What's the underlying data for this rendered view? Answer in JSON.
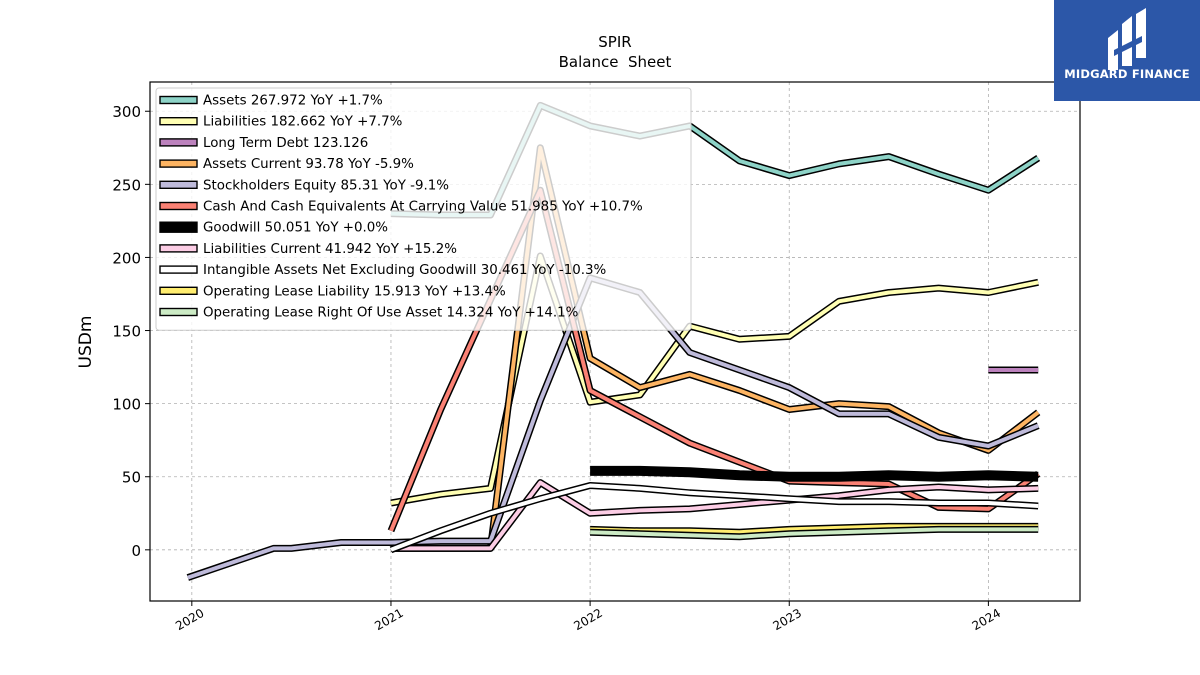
{
  "brand": {
    "name": "MIDGARD FINANCE",
    "icon": "midgard-logo-icon",
    "color": "#2c57a8"
  },
  "chart_data": {
    "type": "line",
    "title": "SPIR",
    "subtitle": "Balance  Sheet",
    "ylabel": "USDm",
    "xlabel": "",
    "xlim": [
      2019.79,
      2024.46
    ],
    "ylim": [
      -35,
      320
    ],
    "xticks": [
      2020,
      2021,
      2022,
      2023,
      2024
    ],
    "xtick_labels": [
      "2020",
      "2021",
      "2022",
      "2023",
      "2024"
    ],
    "yticks": [
      0,
      50,
      100,
      150,
      200,
      250,
      300
    ],
    "ytick_labels": [
      "0",
      "50",
      "100",
      "150",
      "200",
      "250",
      "300"
    ],
    "grid": true,
    "legend_position": "top-left",
    "series": [
      {
        "name": "Assets  267.972 YoY +1.7%",
        "color": "#8dd3c7",
        "x": [
          2021.0,
          2021.25,
          2021.5,
          2021.75,
          2022.0,
          2022.25,
          2022.5,
          2022.75,
          2023.0,
          2023.25,
          2023.5,
          2023.75,
          2024.0,
          2024.25
        ],
        "y": [
          230,
          229,
          229,
          304,
          290,
          283,
          290,
          266,
          256,
          264,
          269,
          257,
          246,
          268
        ]
      },
      {
        "name": "Liabilities  182.662 YoY +7.7%",
        "color": "#ffffb3",
        "x": [
          2021.0,
          2021.25,
          2021.5,
          2021.75,
          2022.0,
          2022.25,
          2022.5,
          2022.75,
          2023.0,
          2023.25,
          2023.5,
          2023.75,
          2024.0,
          2024.25
        ],
        "y": [
          32,
          38,
          42,
          201,
          101,
          106,
          153,
          144,
          146,
          170,
          176,
          179,
          176,
          183
        ]
      },
      {
        "name": "Long Term Debt  123.126",
        "color": "#bc82bd",
        "x": [
          2024.0,
          2024.25
        ],
        "y": [
          123,
          123
        ]
      },
      {
        "name": "Assets Current  93.78 YoY -5.9%",
        "color": "#fdb462",
        "x": [
          2021.0,
          2021.25,
          2021.5,
          2021.75,
          2022.0,
          2022.25,
          2022.5,
          2022.75,
          2023.0,
          2023.25,
          2023.5,
          2023.75,
          2024.0,
          2024.25
        ],
        "y": [
          1,
          1,
          1,
          275,
          131,
          111,
          120,
          109,
          96,
          100,
          98,
          80,
          68,
          94
        ]
      },
      {
        "name": "Stockholders Equity  85.31 YoY -9.1%",
        "color": "#bebada",
        "x": [
          2019.98,
          2020.41,
          2020.5,
          2020.75,
          2021.0,
          2021.25,
          2021.5,
          2021.75,
          2022.0,
          2022.25,
          2022.5,
          2022.75,
          2023.0,
          2023.25,
          2023.5,
          2023.75,
          2024.0,
          2024.25
        ],
        "y": [
          -19,
          1,
          1,
          5,
          5,
          6,
          6,
          102,
          186,
          176,
          135,
          123,
          111,
          93,
          93,
          77,
          71,
          85
        ]
      },
      {
        "name": "Cash And Cash Equivalents At Carrying Value  51.985 YoY +10.7%",
        "color": "#fa8174",
        "x": [
          2021.0,
          2021.25,
          2021.5,
          2021.75,
          2022.0,
          2022.25,
          2022.5,
          2022.75,
          2023.0,
          2023.25,
          2023.5,
          2023.75,
          2024.0,
          2024.25
        ],
        "y": [
          13,
          96,
          171,
          246,
          109,
          91,
          73,
          60,
          47,
          46,
          45,
          29,
          28,
          52
        ]
      },
      {
        "name": "Goodwill  50.051 YoY +0.0%",
        "color": "#000000",
        "x": [
          2022.0,
          2022.25,
          2022.5,
          2022.75,
          2023.0,
          2023.25,
          2023.5,
          2023.75,
          2024.0,
          2024.25
        ],
        "y": [
          54,
          54,
          53,
          51,
          50,
          50,
          51,
          50,
          51,
          50
        ]
      },
      {
        "name": "Liabilities Current  41.942 YoY +15.2%",
        "color": "#fccde5",
        "x": [
          2021.0,
          2021.25,
          2021.5,
          2021.75,
          2022.0,
          2022.25,
          2022.5,
          2022.75,
          2023.0,
          2023.25,
          2023.5,
          2023.75,
          2024.0,
          2024.25
        ],
        "y": [
          1,
          1,
          1,
          46,
          25,
          27,
          28,
          31,
          34,
          37,
          41,
          43,
          41,
          42
        ]
      },
      {
        "name": "Intangible Assets Net Excluding Goodwill  30.461 YoY -10.3%",
        "color": "#ffffff",
        "x": [
          2021.0,
          2021.25,
          2021.5,
          2021.75,
          2022.0,
          2022.25,
          2022.5,
          2022.75,
          2023.0,
          2023.25,
          2023.5,
          2023.75,
          2024.0,
          2024.25
        ],
        "y": [
          0,
          13,
          25,
          35,
          44,
          42,
          39,
          37,
          35,
          33,
          33,
          32,
          32,
          30
        ]
      },
      {
        "name": "Operating Lease Liability  15.913 YoY +13.4%",
        "color": "#ffed6f",
        "x": [
          2022.0,
          2022.25,
          2022.5,
          2022.75,
          2023.0,
          2023.25,
          2023.5,
          2023.75,
          2024.0,
          2024.25
        ],
        "y": [
          14,
          13,
          13,
          12,
          14,
          15,
          16,
          16,
          16,
          16
        ]
      },
      {
        "name": "Operating Lease Right Of Use Asset  14.324 YoY +14.1%",
        "color": "#ccebc5",
        "x": [
          2022.0,
          2022.25,
          2022.5,
          2022.75,
          2023.0,
          2023.25,
          2023.5,
          2023.75,
          2024.0,
          2024.25
        ],
        "y": [
          12,
          11,
          10,
          9,
          11,
          12,
          13,
          14,
          14,
          14
        ]
      }
    ]
  }
}
